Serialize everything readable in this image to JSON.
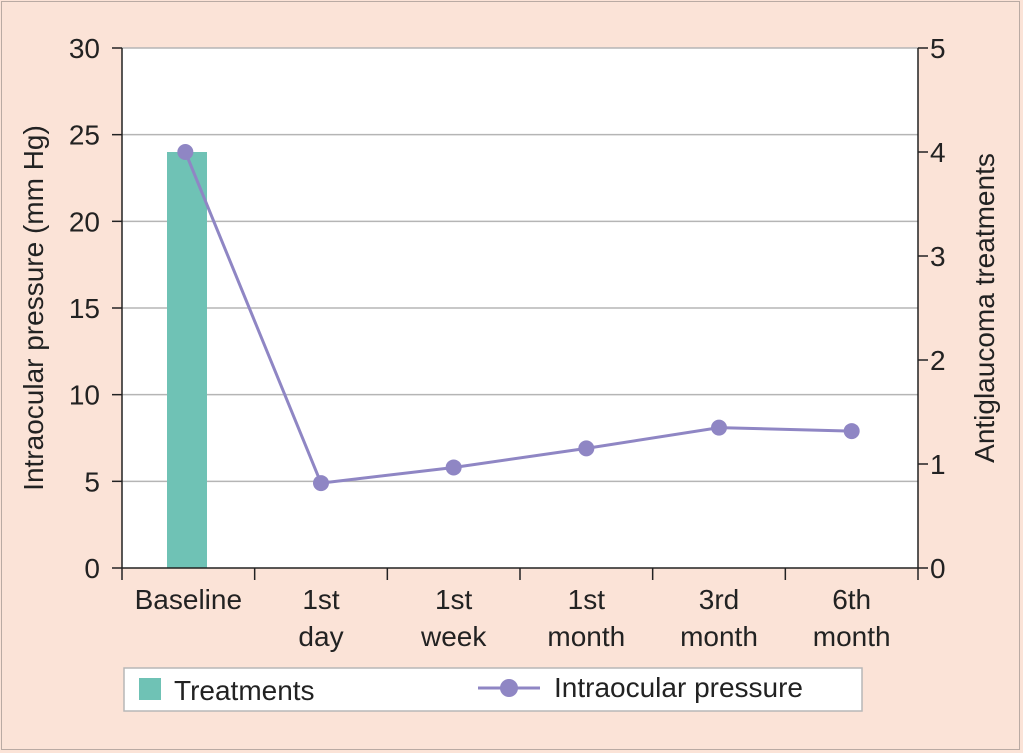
{
  "chart_data": {
    "type": "bar+line",
    "categories": [
      [
        "Baseline"
      ],
      [
        "1st",
        "day"
      ],
      [
        "1st",
        "week"
      ],
      [
        "1st",
        "month"
      ],
      [
        "3rd",
        "month"
      ],
      [
        "6th",
        "month"
      ]
    ],
    "left_axis": {
      "label": "Intraocular pressure (mm Hg)",
      "range": [
        0,
        30
      ],
      "ticks": [
        "0",
        "5",
        "10",
        "15",
        "20",
        "25",
        "30"
      ]
    },
    "right_axis": {
      "label": "Antiglaucoma treatments",
      "range": [
        0,
        5
      ],
      "ticks": [
        "0",
        "1",
        "2",
        "3",
        "4",
        "5"
      ]
    },
    "series": [
      {
        "name": "Treatments",
        "kind": "bar",
        "axis": "right",
        "color": "#6fc2b5",
        "values": [
          4,
          0,
          0,
          0,
          0,
          0
        ]
      },
      {
        "name": "Intraocular pressure",
        "kind": "line",
        "axis": "left",
        "color": "#8f86c4",
        "values": [
          24,
          4.9,
          5.8,
          6.9,
          8.1,
          7.9
        ]
      }
    ],
    "grid": true,
    "legend_position": "bottom"
  }
}
